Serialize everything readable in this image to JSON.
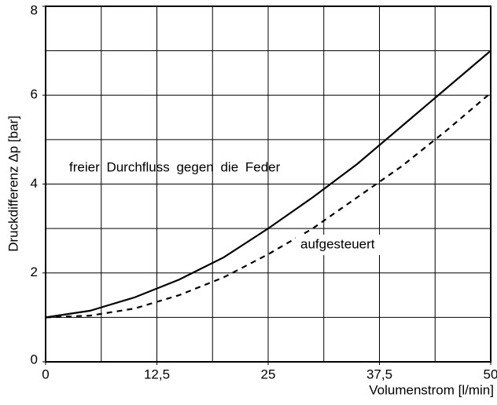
{
  "chart_data": {
    "type": "line",
    "x_label": "Volumenstrom [l/min]",
    "y_label": "Druckdifferenz Δp [bar]",
    "x": [
      0,
      5,
      10,
      15,
      20,
      25,
      30,
      35,
      40,
      45,
      50
    ],
    "series": [
      {
        "name": "freier Durchfluss gegen die Feder",
        "color": "#000000",
        "dash": "solid",
        "values": [
          1,
          1.15,
          1.45,
          1.85,
          2.35,
          3.0,
          3.7,
          4.45,
          5.3,
          6.15,
          7.0
        ]
      },
      {
        "name": "aufgesteuert",
        "color": "#000000",
        "dash": "dashed",
        "values": [
          1,
          1.04,
          1.2,
          1.5,
          1.9,
          2.42,
          3.0,
          3.7,
          4.4,
          5.2,
          6.05
        ]
      }
    ],
    "xlim": [
      0,
      50
    ],
    "ylim": [
      0,
      8
    ],
    "xticks": [
      0,
      {
        "value": 12.5,
        "label": "12,5"
      },
      25,
      {
        "value": 37.5,
        "label": "37,5"
      },
      50
    ],
    "yticks": [
      0,
      2,
      4,
      6,
      8
    ],
    "x_grid": [
      0,
      6.25,
      12.5,
      18.75,
      25,
      31.25,
      37.5,
      43.75,
      50
    ],
    "y_grid": [
      0,
      1,
      2,
      3,
      4,
      5,
      6,
      7,
      8
    ],
    "grid": true
  }
}
